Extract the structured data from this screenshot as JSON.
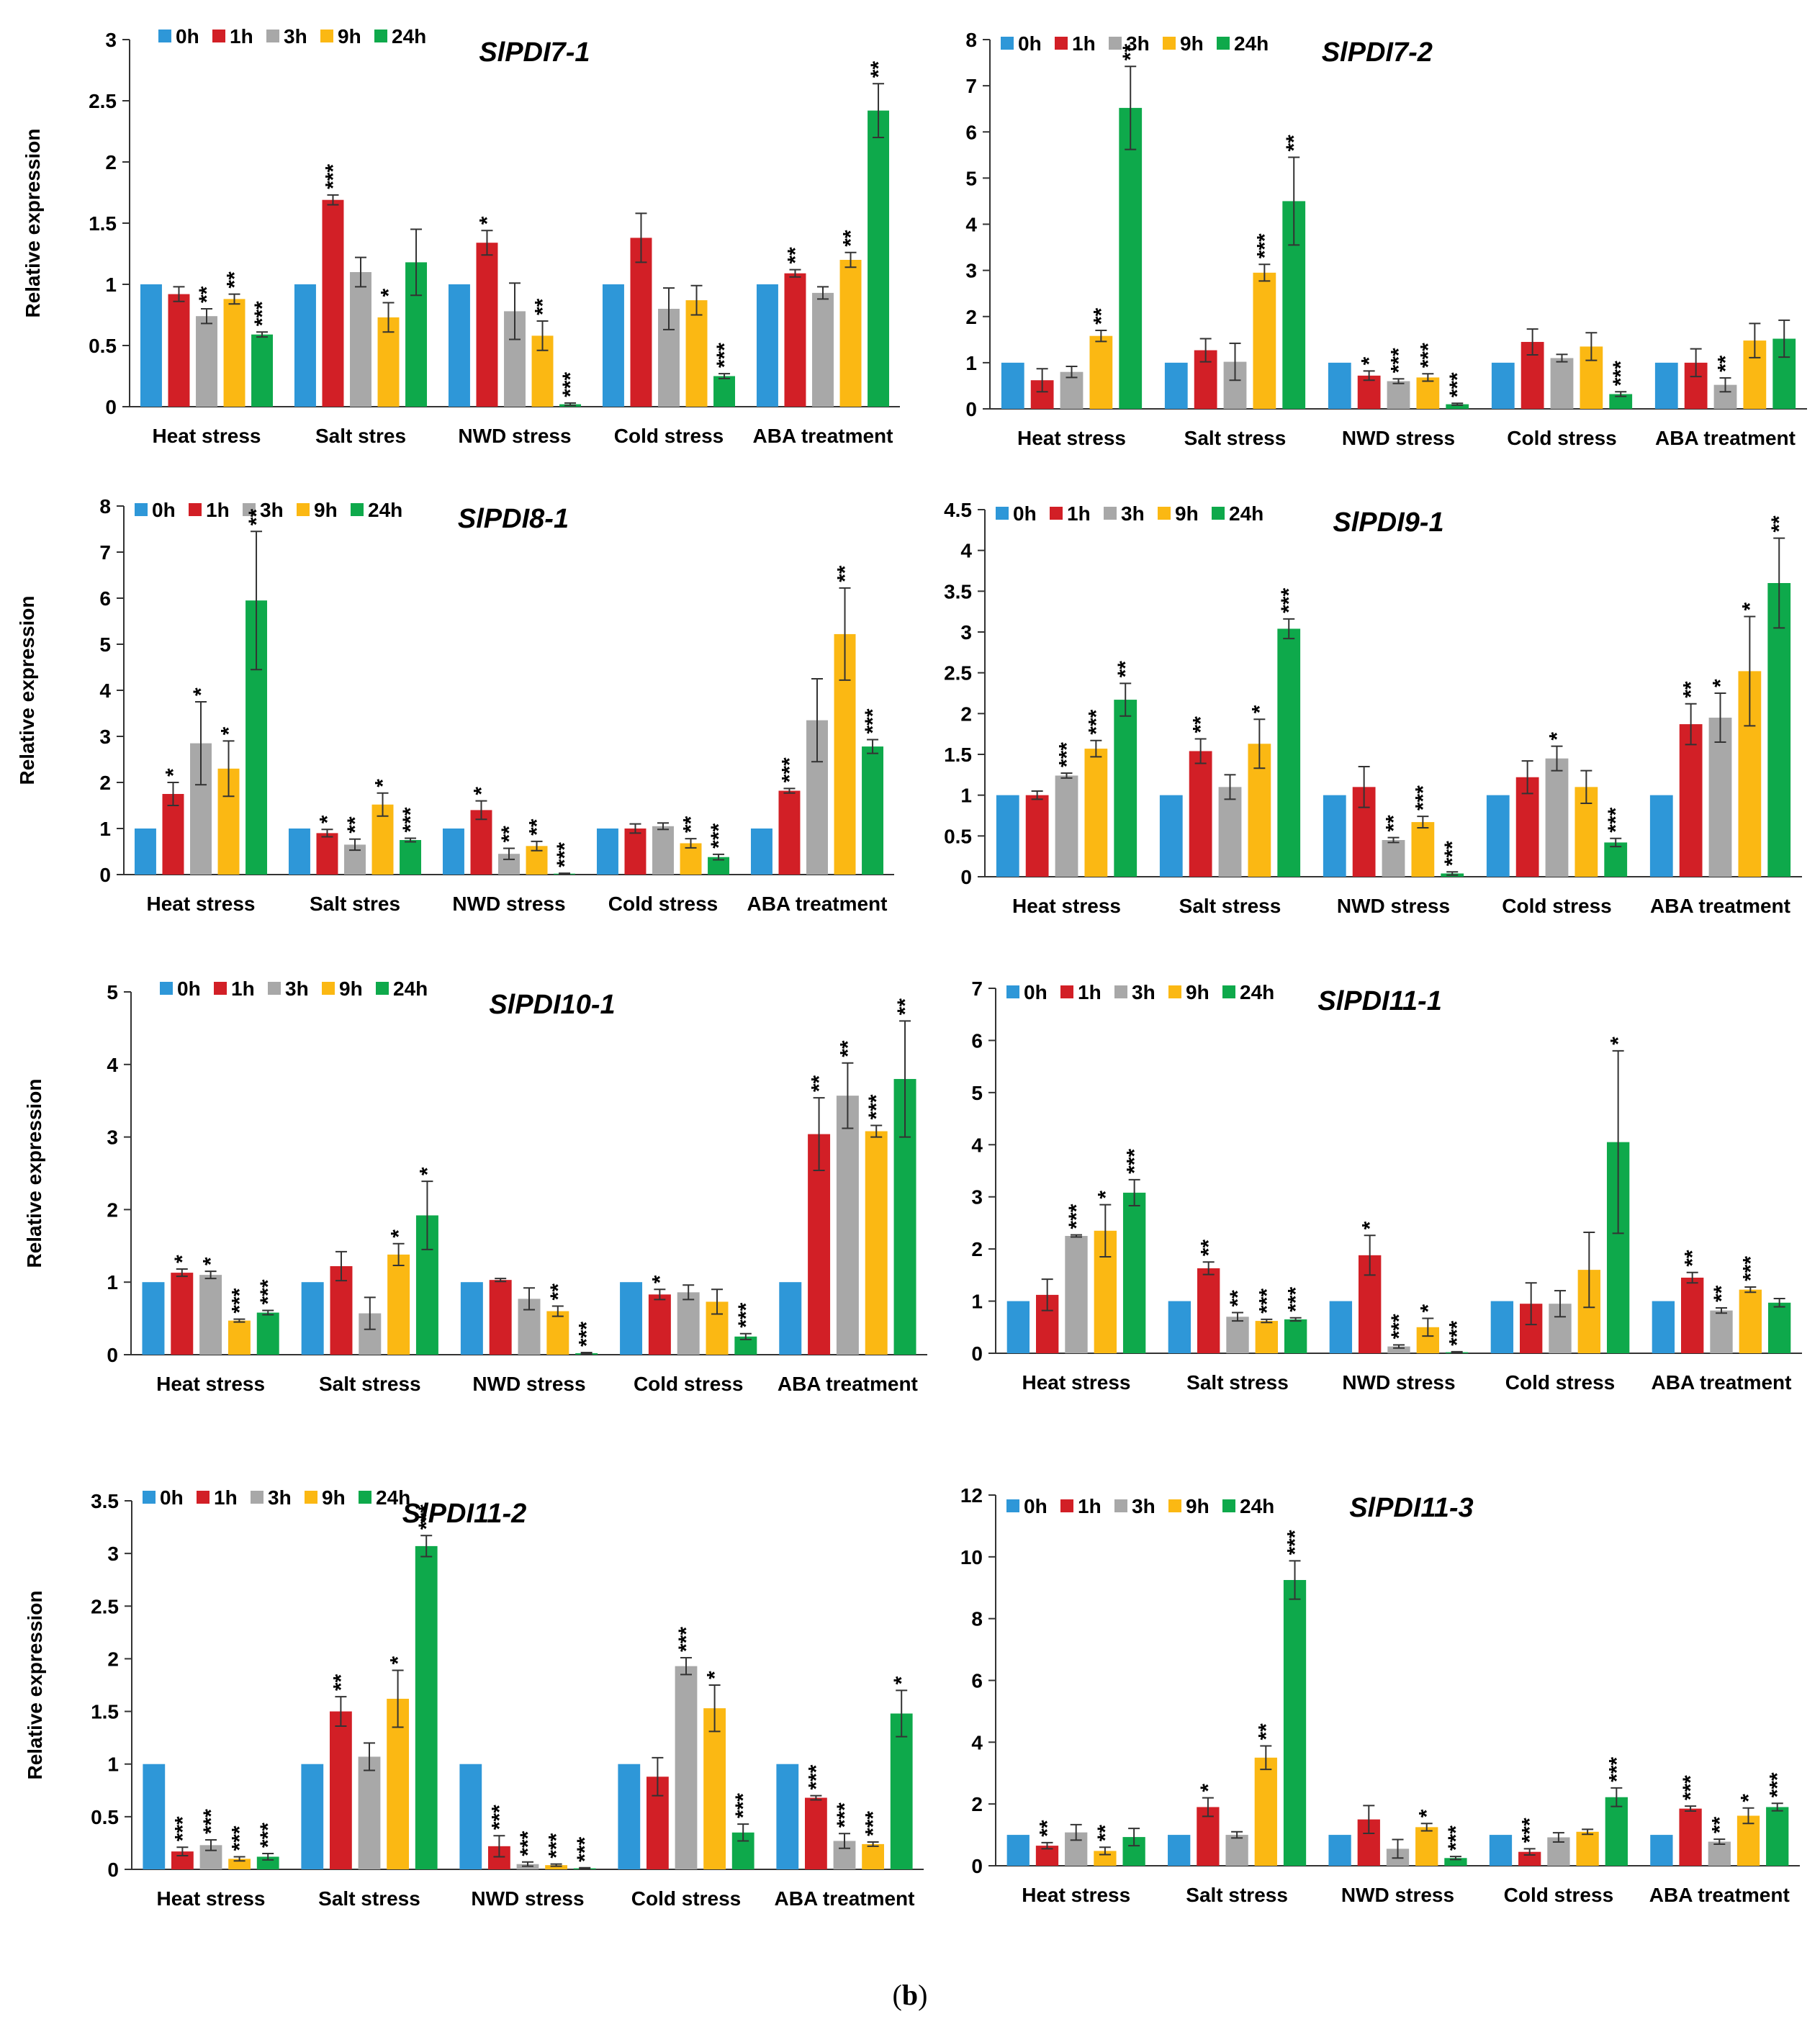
{
  "legend": {
    "series": [
      "0h",
      "1h",
      "3h",
      "9h",
      "24h"
    ],
    "colors": [
      "#2e97d8",
      "#d21f26",
      "#a8a8a8",
      "#fbb813",
      "#0ea94b"
    ]
  },
  "caption": {
    "open": "(",
    "label": "b",
    "close": ")"
  },
  "chart_data": [
    {
      "type": "bar",
      "title": "SlPDI7-1",
      "ylabel": "Relative  expression",
      "ylim": [
        0,
        3
      ],
      "yticks": [
        "0",
        "0.5",
        "1",
        "1.5",
        "2",
        "2.5",
        "3"
      ],
      "categories": [
        "Heat stress",
        "Salt stres",
        "NWD stress",
        "Cold stress",
        "ABA treatment"
      ],
      "series": [
        {
          "name": "0h",
          "values": [
            1,
            1,
            1,
            1,
            1
          ],
          "err": [
            0,
            0,
            0,
            0,
            0
          ],
          "sig": [
            "",
            "",
            "",
            "",
            ""
          ]
        },
        {
          "name": "1h",
          "values": [
            0.92,
            1.69,
            1.34,
            1.38,
            1.09
          ],
          "err": [
            0.06,
            0.04,
            0.1,
            0.2,
            0.03
          ],
          "sig": [
            "",
            "***",
            "*",
            "",
            "**"
          ]
        },
        {
          "name": "3h",
          "values": [
            0.74,
            1.1,
            0.78,
            0.8,
            0.93
          ],
          "err": [
            0.06,
            0.12,
            0.23,
            0.17,
            0.05
          ],
          "sig": [
            "**",
            "",
            "",
            "",
            ""
          ]
        },
        {
          "name": "9h",
          "values": [
            0.88,
            0.73,
            0.58,
            0.87,
            1.2
          ],
          "err": [
            0.04,
            0.12,
            0.12,
            0.12,
            0.06
          ],
          "sig": [
            "**",
            "*",
            "**",
            "",
            "**"
          ]
        },
        {
          "name": "24h",
          "values": [
            0.59,
            1.18,
            0.02,
            0.25,
            2.42
          ],
          "err": [
            0.02,
            0.27,
            0.01,
            0.02,
            0.22
          ],
          "sig": [
            "***",
            "",
            "***",
            "***",
            "**"
          ]
        }
      ]
    },
    {
      "type": "bar",
      "title": "SlPDI7-2",
      "ylabel": "",
      "ylim": [
        0,
        8
      ],
      "yticks": [
        "0",
        "1",
        "2",
        "3",
        "4",
        "5",
        "6",
        "7",
        "8"
      ],
      "categories": [
        "Heat stress",
        "Salt stress",
        "NWD stress",
        "Cold stress",
        "ABA treatment"
      ],
      "series": [
        {
          "name": "0h",
          "values": [
            1,
            1,
            1,
            1,
            1
          ],
          "err": [
            0,
            0,
            0,
            0,
            0
          ],
          "sig": [
            "",
            "",
            "",
            "",
            ""
          ]
        },
        {
          "name": "1h",
          "values": [
            0.62,
            1.27,
            0.72,
            1.45,
            1.0
          ],
          "err": [
            0.25,
            0.25,
            0.1,
            0.28,
            0.3
          ],
          "sig": [
            "",
            "",
            "*",
            "",
            ""
          ]
        },
        {
          "name": "3h",
          "values": [
            0.8,
            1.02,
            0.6,
            1.1,
            0.52
          ],
          "err": [
            0.12,
            0.4,
            0.05,
            0.08,
            0.15
          ],
          "sig": [
            "",
            "",
            "***",
            "",
            "**"
          ]
        },
        {
          "name": "9h",
          "values": [
            1.58,
            2.95,
            0.68,
            1.35,
            1.48
          ],
          "err": [
            0.12,
            0.18,
            0.08,
            0.3,
            0.37
          ],
          "sig": [
            "**",
            "***",
            "***",
            "",
            ""
          ]
        },
        {
          "name": "24h",
          "values": [
            6.52,
            4.5,
            0.1,
            0.32,
            1.52
          ],
          "err": [
            0.9,
            0.95,
            0.02,
            0.05,
            0.4
          ],
          "sig": [
            "**",
            "**",
            "***",
            "***",
            ""
          ]
        }
      ]
    },
    {
      "type": "bar",
      "title": "SlPDI8-1",
      "ylabel": "Relative  expression",
      "ylim": [
        0,
        8
      ],
      "yticks": [
        "0",
        "1",
        "2",
        "3",
        "4",
        "5",
        "6",
        "7",
        "8"
      ],
      "categories": [
        "Heat stress",
        "Salt stres",
        "NWD stress",
        "Cold stress",
        "ABA treatment"
      ],
      "series": [
        {
          "name": "0h",
          "values": [
            1,
            1,
            1,
            1,
            1
          ],
          "err": [
            0,
            0,
            0,
            0,
            0
          ],
          "sig": [
            "",
            "",
            "",
            "",
            ""
          ]
        },
        {
          "name": "1h",
          "values": [
            1.75,
            0.9,
            1.4,
            1.0,
            1.82
          ],
          "err": [
            0.25,
            0.08,
            0.2,
            0.1,
            0.05
          ],
          "sig": [
            "*",
            "*",
            "*",
            "",
            "***"
          ]
        },
        {
          "name": "3h",
          "values": [
            2.85,
            0.65,
            0.45,
            1.05,
            3.35
          ],
          "err": [
            0.9,
            0.12,
            0.12,
            0.07,
            0.9
          ],
          "sig": [
            "*",
            "**",
            "**",
            "",
            ""
          ]
        },
        {
          "name": "9h",
          "values": [
            2.3,
            1.52,
            0.62,
            0.68,
            5.22
          ],
          "err": [
            0.6,
            0.25,
            0.1,
            0.1,
            1.0
          ],
          "sig": [
            "*",
            "*",
            "**",
            "**",
            "**"
          ]
        },
        {
          "name": "24h",
          "values": [
            5.95,
            0.75,
            0.02,
            0.38,
            2.78
          ],
          "err": [
            1.5,
            0.04,
            0.01,
            0.06,
            0.15
          ],
          "sig": [
            "**",
            "***",
            "***",
            "***",
            "***"
          ]
        }
      ]
    },
    {
      "type": "bar",
      "title": "SlPDI9-1",
      "ylabel": "",
      "ylim": [
        0,
        4.5
      ],
      "yticks": [
        "0",
        "0.5",
        "1",
        "1.5",
        "2",
        "2.5",
        "3",
        "3.5",
        "4",
        "4.5"
      ],
      "categories": [
        "Heat stress",
        "Salt stress",
        "NWD stress",
        "Cold stress",
        "ABA treatment"
      ],
      "series": [
        {
          "name": "0h",
          "values": [
            1,
            1,
            1,
            1,
            1
          ],
          "err": [
            0,
            0,
            0,
            0,
            0
          ],
          "sig": [
            "",
            "",
            "",
            "",
            ""
          ]
        },
        {
          "name": "1h",
          "values": [
            1.0,
            1.54,
            1.1,
            1.22,
            1.87
          ],
          "err": [
            0.05,
            0.15,
            0.25,
            0.2,
            0.25
          ],
          "sig": [
            "",
            "**",
            "",
            "",
            "**"
          ]
        },
        {
          "name": "3h",
          "values": [
            1.24,
            1.1,
            0.45,
            1.45,
            1.95
          ],
          "err": [
            0.03,
            0.15,
            0.03,
            0.15,
            0.3
          ],
          "sig": [
            "***",
            "",
            "**",
            "*",
            "*"
          ]
        },
        {
          "name": "9h",
          "values": [
            1.57,
            1.63,
            0.67,
            1.1,
            2.52
          ],
          "err": [
            0.1,
            0.3,
            0.07,
            0.2,
            0.67
          ],
          "sig": [
            "***",
            "*",
            "***",
            "",
            "*"
          ]
        },
        {
          "name": "24h",
          "values": [
            2.17,
            3.04,
            0.04,
            0.42,
            3.6
          ],
          "err": [
            0.2,
            0.12,
            0.02,
            0.05,
            0.55
          ],
          "sig": [
            "**",
            "***",
            "***",
            "***",
            "**"
          ]
        }
      ]
    },
    {
      "type": "bar",
      "title": "SlPDI10-1",
      "ylabel": "Relative  expression",
      "ylim": [
        0,
        5
      ],
      "yticks": [
        "0",
        "1",
        "2",
        "3",
        "4",
        "5"
      ],
      "categories": [
        "Heat stress",
        "Salt stress",
        "NWD stress",
        "Cold stress",
        "ABA treatment"
      ],
      "series": [
        {
          "name": "0h",
          "values": [
            1,
            1,
            1,
            1,
            1
          ],
          "err": [
            0,
            0,
            0,
            0,
            0
          ],
          "sig": [
            "",
            "",
            "",
            "",
            ""
          ]
        },
        {
          "name": "1h",
          "values": [
            1.13,
            1.22,
            1.03,
            0.83,
            3.04
          ],
          "err": [
            0.05,
            0.2,
            0.02,
            0.07,
            0.5
          ],
          "sig": [
            "*",
            "",
            "",
            "*",
            "**"
          ]
        },
        {
          "name": "3h",
          "values": [
            1.1,
            0.57,
            0.77,
            0.86,
            3.57
          ],
          "err": [
            0.05,
            0.22,
            0.15,
            0.1,
            0.45
          ],
          "sig": [
            "*",
            "",
            "",
            "",
            "**"
          ]
        },
        {
          "name": "9h",
          "values": [
            0.47,
            1.38,
            0.6,
            0.73,
            3.08
          ],
          "err": [
            0.02,
            0.15,
            0.07,
            0.17,
            0.08
          ],
          "sig": [
            "***",
            "*",
            "**",
            "",
            "***"
          ]
        },
        {
          "name": "24h",
          "values": [
            0.58,
            1.92,
            0.02,
            0.25,
            3.8
          ],
          "err": [
            0.03,
            0.47,
            0.01,
            0.04,
            0.8
          ],
          "sig": [
            "***",
            "*",
            "***",
            "***",
            "**"
          ]
        }
      ]
    },
    {
      "type": "bar",
      "title": "SlPDI11-1",
      "ylabel": "",
      "ylim": [
        0,
        7
      ],
      "yticks": [
        "0",
        "1",
        "2",
        "3",
        "4",
        "5",
        "6",
        "7"
      ],
      "categories": [
        "Heat stress",
        "Salt stress",
        "NWD stress",
        "Cold stress",
        "ABA treatment"
      ],
      "series": [
        {
          "name": "0h",
          "values": [
            1,
            1,
            1,
            1,
            1
          ],
          "err": [
            0,
            0,
            0,
            0,
            0
          ],
          "sig": [
            "",
            "",
            "",
            "",
            ""
          ]
        },
        {
          "name": "1h",
          "values": [
            1.12,
            1.63,
            1.88,
            0.95,
            1.45
          ],
          "err": [
            0.3,
            0.12,
            0.38,
            0.4,
            0.1
          ],
          "sig": [
            "",
            "**",
            "*",
            "",
            "**"
          ]
        },
        {
          "name": "3h",
          "values": [
            2.25,
            0.7,
            0.13,
            0.95,
            0.82
          ],
          "err": [
            0.02,
            0.08,
            0.03,
            0.25,
            0.05
          ],
          "sig": [
            "***",
            "**",
            "***",
            "",
            "**"
          ]
        },
        {
          "name": "9h",
          "values": [
            2.35,
            0.62,
            0.5,
            1.6,
            1.22
          ],
          "err": [
            0.5,
            0.03,
            0.17,
            0.72,
            0.05
          ],
          "sig": [
            "*",
            "***",
            "*",
            "",
            "***"
          ]
        },
        {
          "name": "24h",
          "values": [
            3.08,
            0.65,
            0.02,
            4.05,
            0.97
          ],
          "err": [
            0.25,
            0.03,
            0.01,
            1.75,
            0.08
          ],
          "sig": [
            "***",
            "***",
            "***",
            "*",
            ""
          ]
        }
      ]
    },
    {
      "type": "bar",
      "title": "SlPDI11-2",
      "ylabel": "Relative  expression",
      "ylim": [
        0,
        3.5
      ],
      "yticks": [
        "0",
        "0.5",
        "1",
        "1.5",
        "2",
        "2.5",
        "3",
        "3.5"
      ],
      "categories": [
        "Heat stress",
        "Salt stress",
        "NWD stress",
        "Cold stress",
        "ABA treatment"
      ],
      "series": [
        {
          "name": "0h",
          "values": [
            1,
            1,
            1,
            1,
            1
          ],
          "err": [
            0,
            0,
            0,
            0,
            0
          ],
          "sig": [
            "",
            "",
            "",
            "",
            ""
          ]
        },
        {
          "name": "1h",
          "values": [
            0.17,
            1.5,
            0.22,
            0.88,
            0.68
          ],
          "err": [
            0.04,
            0.14,
            0.1,
            0.18,
            0.02
          ],
          "sig": [
            "***",
            "**",
            "***",
            "",
            "***"
          ]
        },
        {
          "name": "3h",
          "values": [
            0.23,
            1.07,
            0.05,
            1.93,
            0.27
          ],
          "err": [
            0.05,
            0.13,
            0.02,
            0.08,
            0.07
          ],
          "sig": [
            "***",
            "",
            "***",
            "***",
            "***"
          ]
        },
        {
          "name": "9h",
          "values": [
            0.1,
            1.62,
            0.04,
            1.53,
            0.24
          ],
          "err": [
            0.02,
            0.27,
            0.01,
            0.22,
            0.02
          ],
          "sig": [
            "***",
            "*",
            "***",
            "*",
            "***"
          ]
        },
        {
          "name": "24h",
          "values": [
            0.12,
            3.07,
            0.01,
            0.35,
            1.48
          ],
          "err": [
            0.03,
            0.1,
            0.005,
            0.08,
            0.22
          ],
          "sig": [
            "***",
            "***",
            "***",
            "***",
            "*"
          ]
        }
      ]
    },
    {
      "type": "bar",
      "title": "SlPDI11-3",
      "ylabel": "",
      "ylim": [
        0,
        12
      ],
      "yticks": [
        "0",
        "2",
        "4",
        "6",
        "8",
        "10",
        "12"
      ],
      "categories": [
        "Heat stress",
        "Salt stress",
        "NWD stress",
        "Cold stress",
        "ABA treatment"
      ],
      "series": [
        {
          "name": "0h",
          "values": [
            1,
            1,
            1,
            1,
            1
          ],
          "err": [
            0,
            0,
            0,
            0,
            0
          ],
          "sig": [
            "",
            "",
            "",
            "",
            ""
          ]
        },
        {
          "name": "1h",
          "values": [
            0.65,
            1.9,
            1.5,
            0.45,
            1.85
          ],
          "err": [
            0.1,
            0.3,
            0.45,
            0.1,
            0.08
          ],
          "sig": [
            "**",
            "*",
            "",
            "***",
            "***"
          ]
        },
        {
          "name": "3h",
          "values": [
            1.08,
            1.0,
            0.55,
            0.92,
            0.78
          ],
          "err": [
            0.25,
            0.1,
            0.3,
            0.15,
            0.08
          ],
          "sig": [
            "",
            "",
            "",
            "",
            "**"
          ]
        },
        {
          "name": "9h",
          "values": [
            0.48,
            3.5,
            1.25,
            1.1,
            1.62
          ],
          "err": [
            0.12,
            0.38,
            0.12,
            0.08,
            0.25
          ],
          "sig": [
            "**",
            "**",
            "*",
            "",
            "*"
          ]
        },
        {
          "name": "24h",
          "values": [
            0.93,
            9.25,
            0.25,
            2.22,
            1.9
          ],
          "err": [
            0.28,
            0.62,
            0.05,
            0.3,
            0.12
          ],
          "sig": [
            "",
            "***",
            "***",
            "***",
            "***"
          ]
        }
      ]
    }
  ]
}
